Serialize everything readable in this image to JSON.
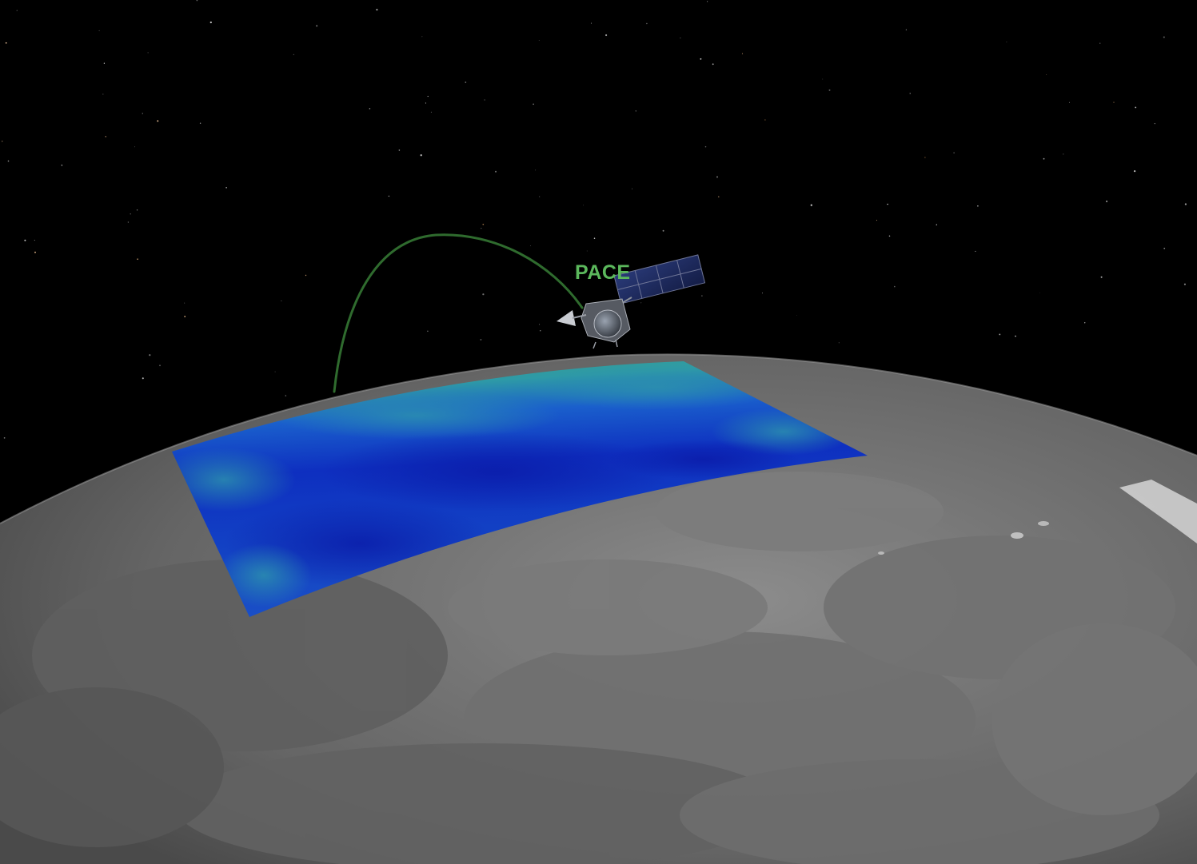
{
  "satellite": {
    "name": "PACE",
    "label_color": "#5bb85c",
    "icon": "satellite-icon"
  },
  "orbit_track": {
    "color": "#2f6b2e"
  },
  "earth": {
    "base_color": "#6b6b6b",
    "style": "grayscale-globe"
  },
  "data_swath": {
    "colors": [
      "#0a1fb8",
      "#1450c8",
      "#2a8fb0",
      "#3aa08c"
    ]
  },
  "background": {
    "color": "#000000",
    "stars": true
  }
}
